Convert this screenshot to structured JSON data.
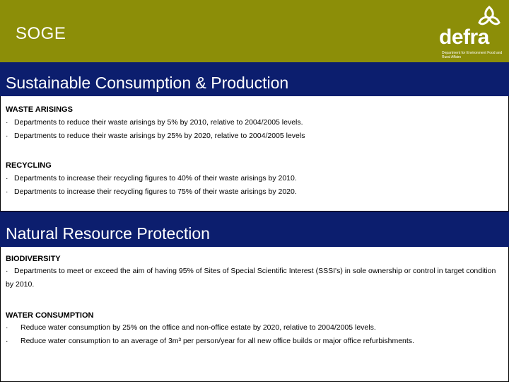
{
  "header": {
    "title": "SOGE",
    "logo_text": "defra",
    "logo_tagline": "Department for Environment Food and Rural Affairs",
    "background_color": "#8c8e08"
  },
  "sections": [
    {
      "title": "Sustainable Consumption & Production",
      "boxes": [
        {
          "heading": "WASTE ARISINGS",
          "bullets": [
            "Departments to reduce their waste arisings by 5% by 2010, relative to 2004/2005 levels.",
            "Departments to reduce their waste arisings by 25% by 2020, relative to 2004/2005 levels"
          ]
        },
        {
          "heading": "RECYCLING",
          "bullets": [
            "Departments to increase their recycling figures to 40% of their waste arisings by 2010.",
            "Departments to increase their recycling figures to 75% of their waste arisings by 2020."
          ]
        }
      ]
    },
    {
      "title": "Natural Resource Protection",
      "boxes": [
        {
          "heading": "BIODIVERSITY",
          "bullets": [
            "Departments to meet or exceed the aim of having 95% of Sites of Special Scientific Interest (SSSI's) in sole ownership or control in target condition by 2010."
          ]
        },
        {
          "heading": "WATER CONSUMPTION",
          "bullets": [
            "Reduce water consumption by 25% on the office and non-office estate by 2020, relative to 2004/2005 levels.",
            "Reduce water consumption to an average of 3m³ per person/year for all new office builds or major office refurbishments."
          ]
        }
      ]
    }
  ],
  "bullet_symbol": "·",
  "band_color": "#0c1e6e"
}
